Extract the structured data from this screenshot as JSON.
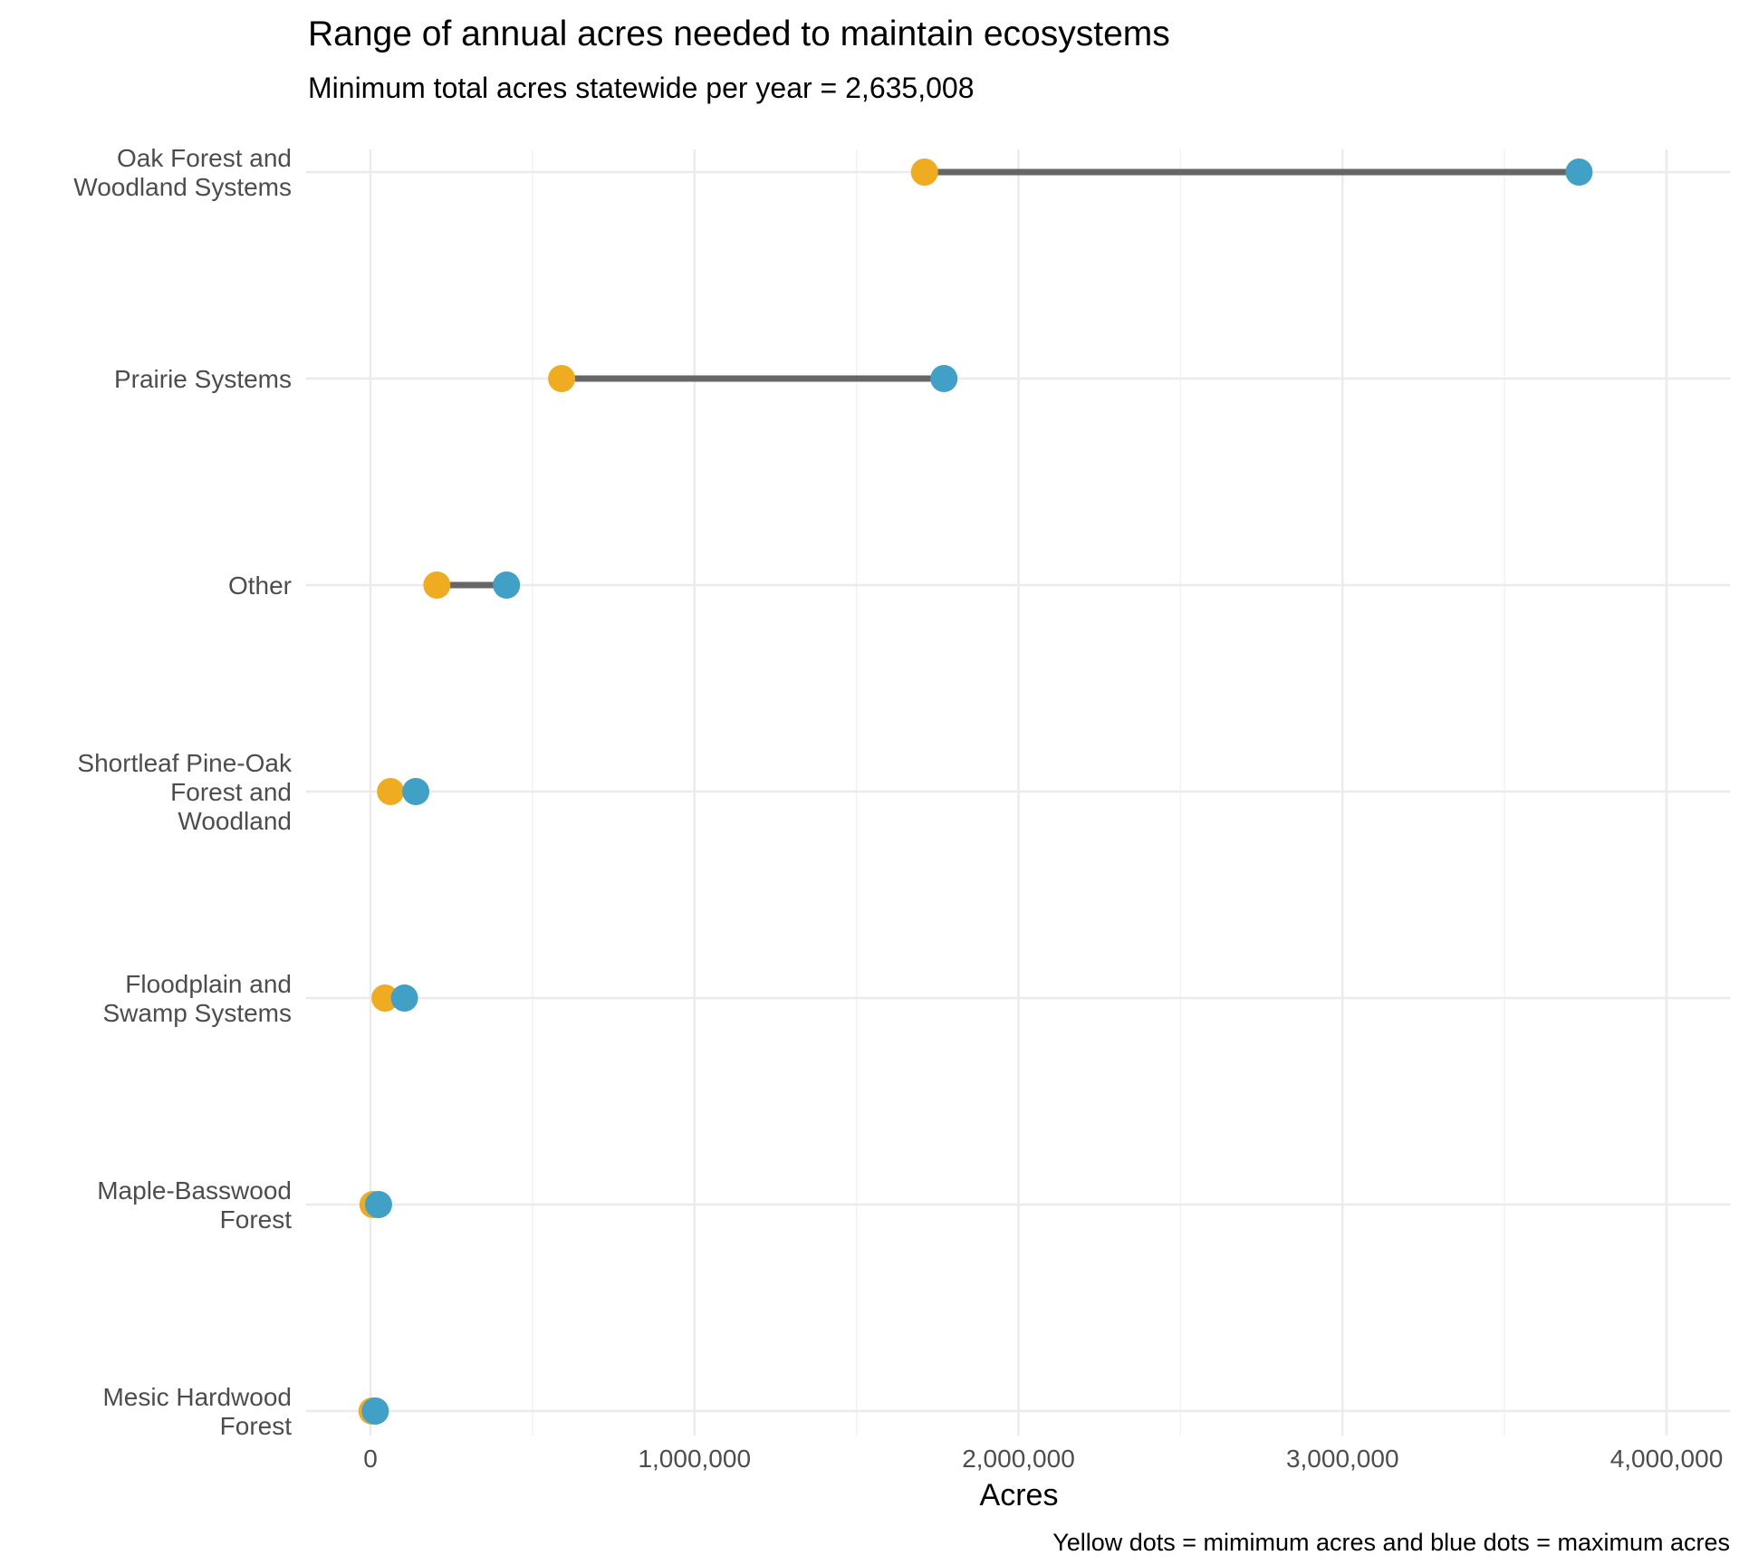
{
  "chart_data": {
    "type": "dumbbell",
    "title": "Range of annual acres needed to maintain ecosystems",
    "subtitle": "Minimum total acres statewide per year = 2,635,008",
    "xlabel": "Acres",
    "caption": "Yellow dots = mimimum acres and blue dots = maximum acres",
    "xlim": [
      -200000,
      4200000
    ],
    "x_ticks": [
      0,
      1000000,
      2000000,
      3000000,
      4000000
    ],
    "x_tick_labels": [
      "0",
      "1,000,000",
      "2,000,000",
      "3,000,000",
      "4,000,000"
    ],
    "categories": [
      [
        "Oak Forest and",
        "Woodland Systems"
      ],
      [
        "Prairie Systems"
      ],
      [
        "Other"
      ],
      [
        "Shortleaf Pine-Oak",
        "Forest and",
        "Woodland"
      ],
      [
        "Floodplain and",
        "Swamp Systems"
      ],
      [
        "Maple-Basswood",
        "Forest"
      ],
      [
        "Mesic Hardwood",
        "Forest"
      ]
    ],
    "min_values": [
      1710000,
      590000,
      205000,
      62000,
      45000,
      8000,
      5000
    ],
    "max_values": [
      3730000,
      1770000,
      420000,
      140000,
      105000,
      25000,
      15000
    ],
    "min_color": "#efac21",
    "max_color": "#40a0c6",
    "segment_color": "#666666",
    "grid": true,
    "legend": "none"
  }
}
